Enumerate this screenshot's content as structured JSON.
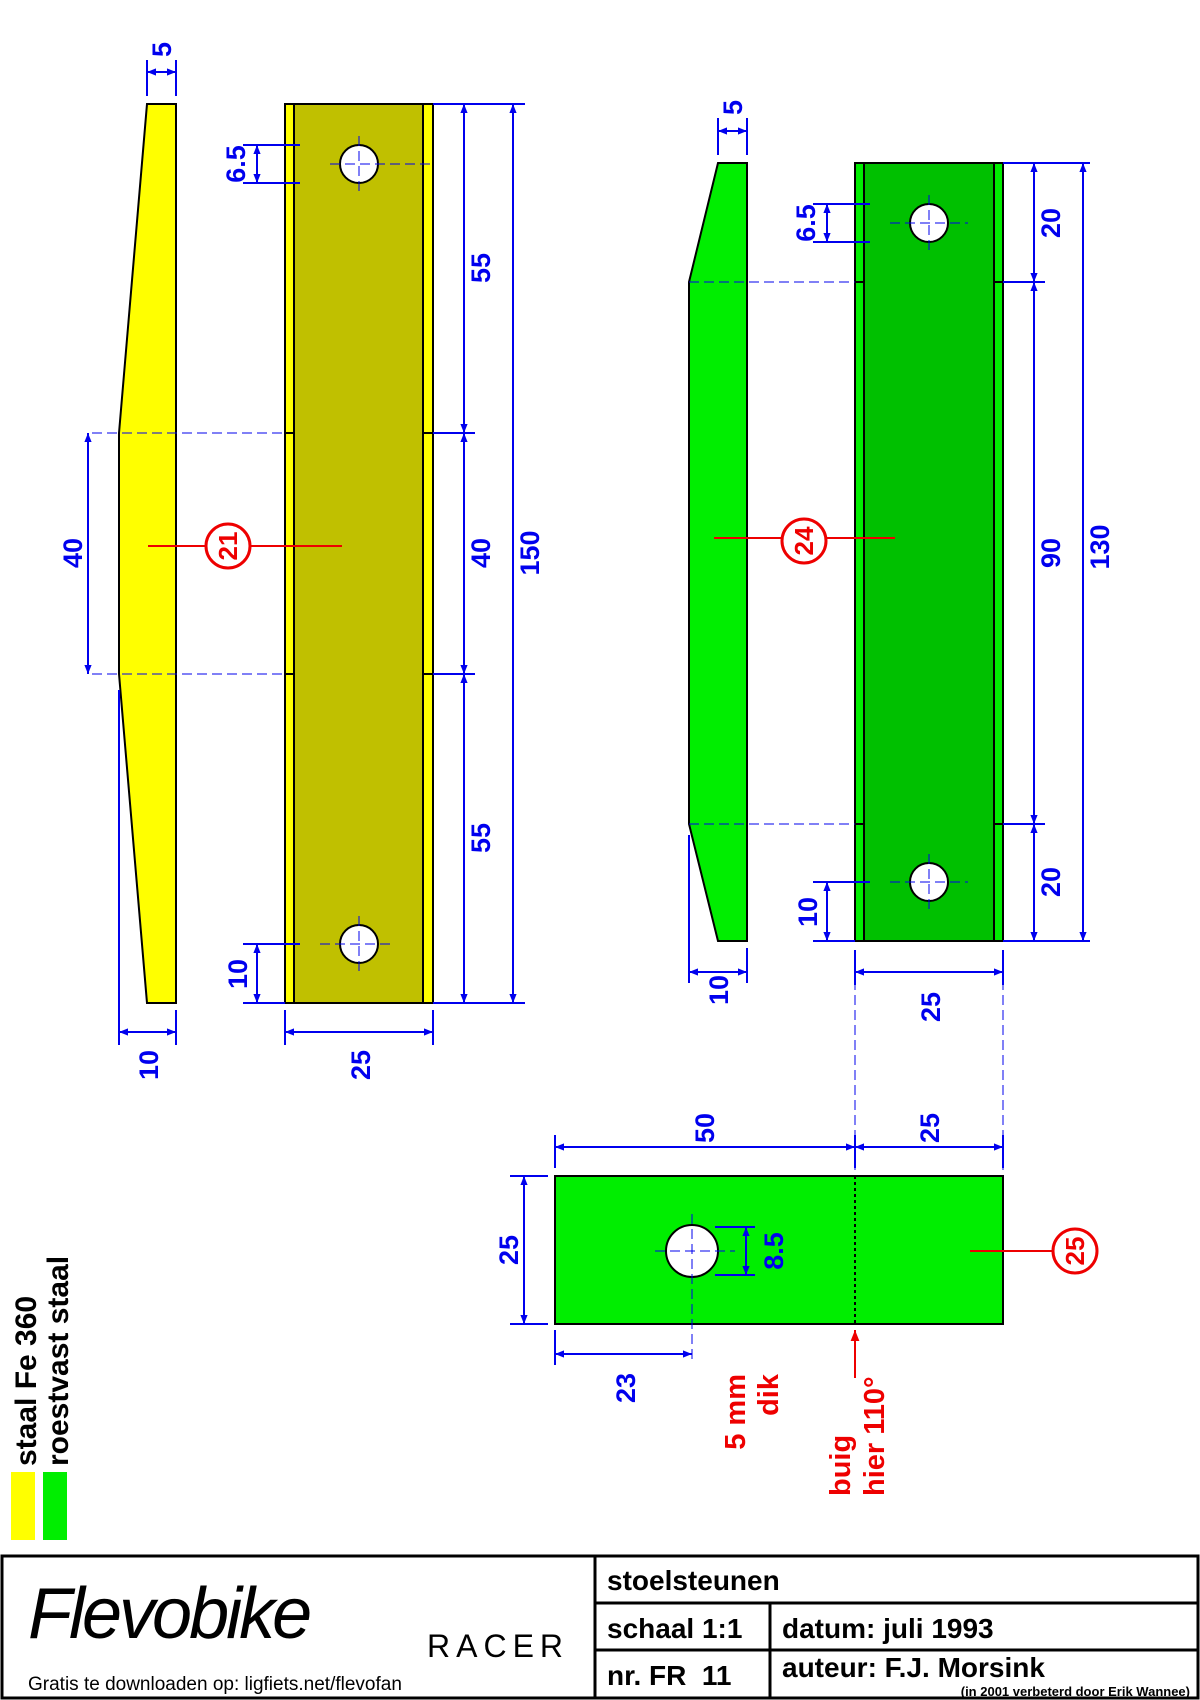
{
  "colors": {
    "fe360": "#ffff00",
    "fe360_face": "#c0c000",
    "rvs": "#00ee00",
    "rvs_face": "#00c000",
    "dimension": "#0000ee",
    "annotation": "#ee0000"
  },
  "parts": {
    "p21": {
      "number": "21",
      "dims": {
        "thickness": "5",
        "taper_width": "10",
        "mid": "40",
        "width": "25",
        "hole": "6.5",
        "hole_offset": "10",
        "upper": "55",
        "middle": "40",
        "lower": "55",
        "total": "150"
      }
    },
    "p24": {
      "number": "24",
      "dims": {
        "thickness": "5",
        "width_side": "10",
        "hole": "6.5",
        "hole_offset": "10",
        "top": "20",
        "middle": "90",
        "bottom": "20",
        "total": "130",
        "width": "25"
      }
    },
    "p25": {
      "number": "25",
      "dims": {
        "len_a": "50",
        "len_b": "25",
        "height": "25",
        "hole": "8.5",
        "hole_pos": "23"
      },
      "note_thickness": [
        "5 mm",
        "dik"
      ],
      "note_bend": [
        "buig",
        "hier 110°"
      ]
    }
  },
  "legend": {
    "items": [
      {
        "label": "staal Fe 360",
        "swatch": "fe360"
      },
      {
        "label": "roestvast staal",
        "swatch": "rvs"
      }
    ]
  },
  "title_block": {
    "logo_text": "Flevobike",
    "model": "RACER",
    "download_text": "Gratis te downloaden op: ligfiets.net/flevofan",
    "title": "stoelsteunen",
    "scale": "schaal 1:1",
    "date": "datum: juli 1993",
    "number": "nr. FR  11",
    "author": "auteur: F.J. Morsink",
    "improved": "(in 2001 verbeterd door Erik Wannee)"
  }
}
